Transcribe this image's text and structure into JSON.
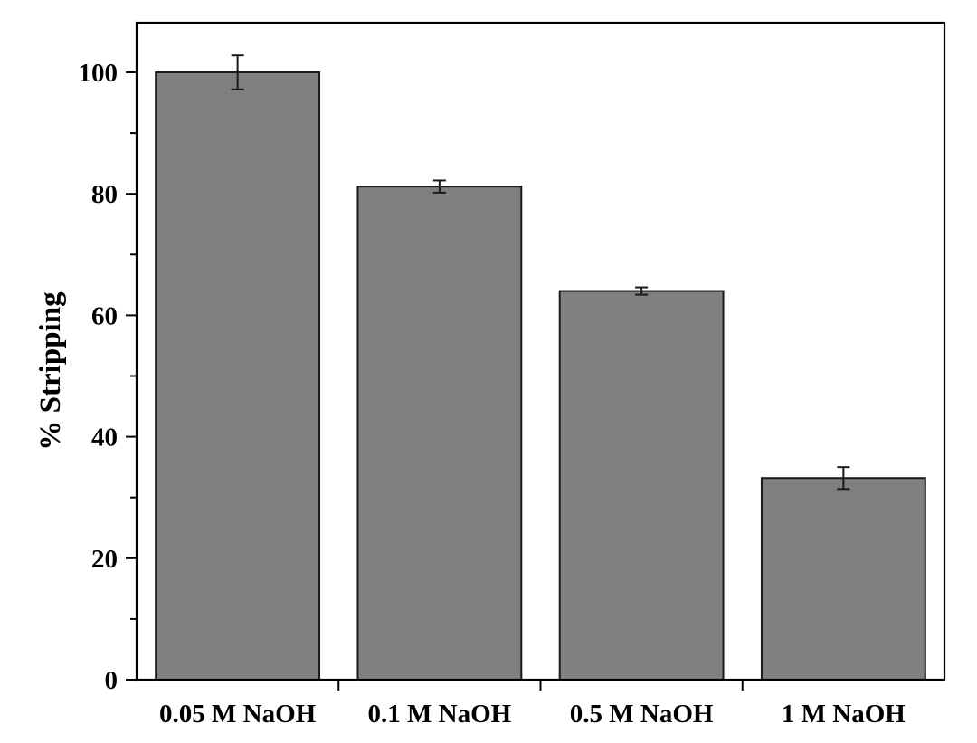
{
  "chart_data": {
    "type": "bar",
    "categories": [
      "0.05 M NaOH",
      "0.1 M NaOH",
      "0.5 M NaOH",
      "1 M NaOH"
    ],
    "values": [
      100,
      81.2,
      64,
      33.2
    ],
    "errors": [
      2.8,
      1.0,
      0.6,
      1.8
    ],
    "title": "",
    "xlabel": "",
    "ylabel": "% Stripping",
    "ylim": [
      0,
      108
    ],
    "yticks": [
      0,
      20,
      40,
      60,
      80,
      100
    ],
    "grid": false,
    "bar_color": "#808080",
    "edge_color": "#1a1a1a"
  }
}
